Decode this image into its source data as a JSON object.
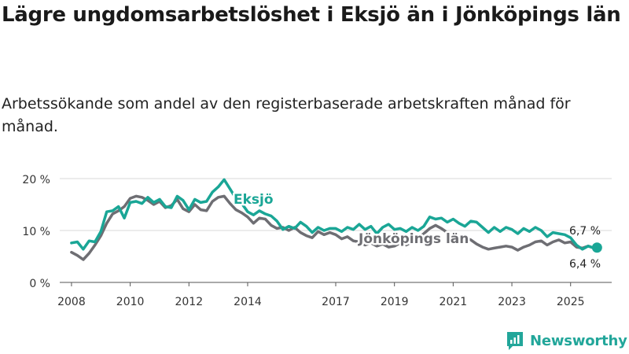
{
  "title": "Lägre ungdomsarbetslöshet i Eksjö än i Jönköpings län",
  "subtitle": "Arbetssökande som andel av den registerbaserade arbetskraften månad för månad.",
  "brand": {
    "name": "Newsworthy",
    "color": "#22a69a"
  },
  "chart_data": {
    "type": "line",
    "ylim": [
      0,
      20
    ],
    "xlim": [
      2007.6,
      2026.4
    ],
    "y_ticks": [
      0,
      10,
      20
    ],
    "y_tick_labels": [
      "0 %",
      "10 %",
      "20 %"
    ],
    "x_ticks": [
      2008,
      2010,
      2012,
      2014,
      2017,
      2019,
      2021,
      2023,
      2025
    ],
    "x_tick_labels": [
      "2008",
      "2010",
      "2012",
      "2014",
      "2017",
      "2019",
      "2021",
      "2023",
      "2025"
    ],
    "grid": true,
    "series": [
      {
        "name": "Jönköpings län",
        "color": "#6e6e73",
        "label": "Jönköpings län",
        "end_label": "6,4 %",
        "points": [
          [
            2008.0,
            5.8
          ],
          [
            2008.2,
            5.2
          ],
          [
            2008.4,
            4.4
          ],
          [
            2008.6,
            5.6
          ],
          [
            2008.8,
            7.2
          ],
          [
            2009.0,
            9.0
          ],
          [
            2009.2,
            11.4
          ],
          [
            2009.4,
            13.2
          ],
          [
            2009.6,
            13.8
          ],
          [
            2009.8,
            14.6
          ],
          [
            2010.0,
            16.2
          ],
          [
            2010.2,
            16.6
          ],
          [
            2010.4,
            16.4
          ],
          [
            2010.6,
            15.8
          ],
          [
            2010.8,
            15.0
          ],
          [
            2011.0,
            15.6
          ],
          [
            2011.2,
            14.4
          ],
          [
            2011.4,
            14.8
          ],
          [
            2011.6,
            16.0
          ],
          [
            2011.8,
            14.2
          ],
          [
            2012.0,
            13.6
          ],
          [
            2012.2,
            15.0
          ],
          [
            2012.4,
            14.0
          ],
          [
            2012.6,
            13.8
          ],
          [
            2012.8,
            15.6
          ],
          [
            2013.0,
            16.4
          ],
          [
            2013.2,
            16.6
          ],
          [
            2013.4,
            15.2
          ],
          [
            2013.6,
            14.0
          ],
          [
            2013.8,
            13.4
          ],
          [
            2014.0,
            12.6
          ],
          [
            2014.2,
            11.4
          ],
          [
            2014.4,
            12.4
          ],
          [
            2014.6,
            12.2
          ],
          [
            2014.8,
            11.0
          ],
          [
            2015.0,
            10.4
          ],
          [
            2015.2,
            10.6
          ],
          [
            2015.4,
            10.0
          ],
          [
            2015.6,
            10.6
          ],
          [
            2015.8,
            9.6
          ],
          [
            2016.0,
            9.0
          ],
          [
            2016.2,
            8.6
          ],
          [
            2016.4,
            9.8
          ],
          [
            2016.6,
            9.2
          ],
          [
            2016.8,
            9.6
          ],
          [
            2017.0,
            9.2
          ],
          [
            2017.2,
            8.4
          ],
          [
            2017.4,
            8.8
          ],
          [
            2017.6,
            8.0
          ],
          [
            2017.8,
            7.8
          ],
          [
            2018.0,
            7.2
          ],
          [
            2018.2,
            7.6
          ],
          [
            2018.4,
            7.0
          ],
          [
            2018.6,
            7.4
          ],
          [
            2018.8,
            6.8
          ],
          [
            2019.0,
            7.0
          ],
          [
            2019.2,
            7.6
          ],
          [
            2019.4,
            7.2
          ],
          [
            2019.6,
            7.8
          ],
          [
            2019.8,
            8.6
          ],
          [
            2020.0,
            9.4
          ],
          [
            2020.2,
            10.4
          ],
          [
            2020.4,
            11.0
          ],
          [
            2020.6,
            10.4
          ],
          [
            2020.8,
            9.6
          ],
          [
            2021.0,
            9.4
          ],
          [
            2021.2,
            9.0
          ],
          [
            2021.4,
            8.6
          ],
          [
            2021.6,
            8.2
          ],
          [
            2021.8,
            7.4
          ],
          [
            2022.0,
            6.8
          ],
          [
            2022.2,
            6.4
          ],
          [
            2022.4,
            6.6
          ],
          [
            2022.6,
            6.8
          ],
          [
            2022.8,
            7.0
          ],
          [
            2023.0,
            6.8
          ],
          [
            2023.2,
            6.2
          ],
          [
            2023.4,
            6.8
          ],
          [
            2023.6,
            7.2
          ],
          [
            2023.8,
            7.8
          ],
          [
            2024.0,
            8.0
          ],
          [
            2024.2,
            7.2
          ],
          [
            2024.4,
            7.8
          ],
          [
            2024.6,
            8.2
          ],
          [
            2024.8,
            7.6
          ],
          [
            2025.0,
            7.8
          ],
          [
            2025.2,
            6.8
          ],
          [
            2025.4,
            6.6
          ],
          [
            2025.6,
            7.0
          ],
          [
            2025.8,
            6.6
          ],
          [
            2025.9,
            6.4
          ]
        ]
      },
      {
        "name": "Eksjö",
        "color": "#1aa696",
        "label": "Eksjö",
        "end_label": "6,7 %",
        "points": [
          [
            2008.0,
            7.6
          ],
          [
            2008.2,
            7.8
          ],
          [
            2008.4,
            6.4
          ],
          [
            2008.6,
            8.0
          ],
          [
            2008.8,
            7.8
          ],
          [
            2009.0,
            9.8
          ],
          [
            2009.2,
            13.6
          ],
          [
            2009.4,
            13.8
          ],
          [
            2009.6,
            14.6
          ],
          [
            2009.8,
            12.4
          ],
          [
            2010.0,
            15.4
          ],
          [
            2010.2,
            15.6
          ],
          [
            2010.4,
            15.2
          ],
          [
            2010.6,
            16.4
          ],
          [
            2010.8,
            15.4
          ],
          [
            2011.0,
            16.0
          ],
          [
            2011.2,
            14.6
          ],
          [
            2011.4,
            14.4
          ],
          [
            2011.6,
            16.6
          ],
          [
            2011.8,
            15.8
          ],
          [
            2012.0,
            14.0
          ],
          [
            2012.2,
            16.0
          ],
          [
            2012.4,
            15.4
          ],
          [
            2012.6,
            15.6
          ],
          [
            2012.8,
            17.4
          ],
          [
            2013.0,
            18.4
          ],
          [
            2013.2,
            19.8
          ],
          [
            2013.4,
            18.0
          ],
          [
            2013.6,
            16.2
          ],
          [
            2013.8,
            15.2
          ],
          [
            2014.0,
            13.6
          ],
          [
            2014.2,
            13.0
          ],
          [
            2014.4,
            13.8
          ],
          [
            2014.6,
            13.2
          ],
          [
            2014.8,
            12.8
          ],
          [
            2015.0,
            11.8
          ],
          [
            2015.2,
            10.2
          ],
          [
            2015.4,
            10.8
          ],
          [
            2015.6,
            10.4
          ],
          [
            2015.8,
            11.6
          ],
          [
            2016.0,
            10.8
          ],
          [
            2016.2,
            9.6
          ],
          [
            2016.4,
            10.6
          ],
          [
            2016.6,
            10.0
          ],
          [
            2016.8,
            10.4
          ],
          [
            2017.0,
            10.4
          ],
          [
            2017.2,
            9.8
          ],
          [
            2017.4,
            10.6
          ],
          [
            2017.6,
            10.2
          ],
          [
            2017.8,
            11.2
          ],
          [
            2018.0,
            10.2
          ],
          [
            2018.2,
            10.8
          ],
          [
            2018.4,
            9.4
          ],
          [
            2018.6,
            10.6
          ],
          [
            2018.8,
            11.2
          ],
          [
            2019.0,
            10.2
          ],
          [
            2019.2,
            10.4
          ],
          [
            2019.4,
            9.8
          ],
          [
            2019.6,
            10.6
          ],
          [
            2019.8,
            10.0
          ],
          [
            2020.0,
            10.8
          ],
          [
            2020.2,
            12.6
          ],
          [
            2020.4,
            12.2
          ],
          [
            2020.6,
            12.4
          ],
          [
            2020.8,
            11.6
          ],
          [
            2021.0,
            12.2
          ],
          [
            2021.2,
            11.4
          ],
          [
            2021.4,
            10.8
          ],
          [
            2021.6,
            11.8
          ],
          [
            2021.8,
            11.6
          ],
          [
            2022.0,
            10.6
          ],
          [
            2022.2,
            9.6
          ],
          [
            2022.4,
            10.6
          ],
          [
            2022.6,
            9.8
          ],
          [
            2022.8,
            10.6
          ],
          [
            2023.0,
            10.2
          ],
          [
            2023.2,
            9.4
          ],
          [
            2023.4,
            10.4
          ],
          [
            2023.6,
            9.8
          ],
          [
            2023.8,
            10.6
          ],
          [
            2024.0,
            10.0
          ],
          [
            2024.2,
            8.8
          ],
          [
            2024.4,
            9.6
          ],
          [
            2024.6,
            9.4
          ],
          [
            2024.8,
            9.2
          ],
          [
            2025.0,
            8.6
          ],
          [
            2025.2,
            7.2
          ],
          [
            2025.4,
            6.4
          ],
          [
            2025.6,
            7.0
          ],
          [
            2025.8,
            6.6
          ],
          [
            2025.9,
            6.7
          ]
        ]
      }
    ]
  }
}
